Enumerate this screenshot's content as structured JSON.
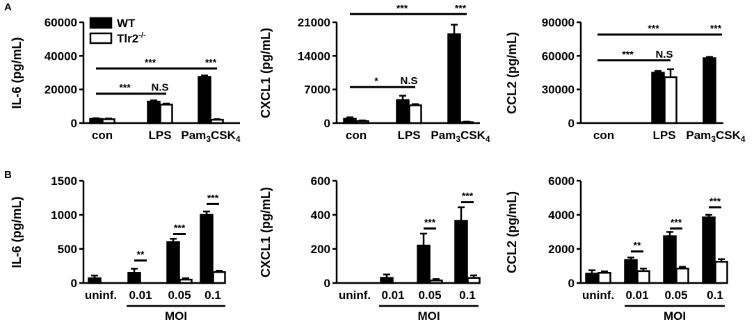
{
  "panel_labels": [
    "A",
    "B"
  ],
  "legend": [
    {
      "label": "WT",
      "fill": "#000000"
    },
    {
      "label": "Tlr2",
      "superscript": "-/-",
      "fill": "#ffffff"
    }
  ],
  "colors": {
    "wt": "#000000",
    "ko": "#ffffff",
    "stroke": "#000000"
  },
  "chart_data": [
    {
      "id": "a-il6",
      "type": "bar",
      "ylabel": "IL-6 (pg/mL)",
      "ylim": [
        0,
        60000
      ],
      "yticks": [
        "0",
        "20000",
        "40000",
        "60000"
      ],
      "categories": [
        "con",
        "LPS",
        "Pam3CSK4"
      ],
      "category_labels": [
        {
          "text": "con"
        },
        {
          "text": "LPS"
        },
        {
          "text": "Pam",
          "sub": "3",
          "rest": "CSK",
          "sub2": "4"
        }
      ],
      "series": [
        {
          "name": "WT",
          "values": [
            2500,
            12800,
            27500
          ],
          "errors": [
            400,
            700,
            800
          ]
        },
        {
          "name": "Tlr2-/-",
          "values": [
            2300,
            11000,
            2000
          ],
          "errors": [
            400,
            600,
            300
          ]
        }
      ],
      "annotations": [
        {
          "label": "***",
          "from": [
            0,
            0
          ],
          "to": [
            1,
            0
          ],
          "y": 17500
        },
        {
          "label": "N.S",
          "from": [
            1,
            0
          ],
          "to": [
            1,
            1
          ],
          "y": 17500
        },
        {
          "label": "***",
          "from": [
            0,
            0
          ],
          "to": [
            2,
            0
          ],
          "y": 32500
        },
        {
          "label": "***",
          "from": [
            2,
            0
          ],
          "to": [
            2,
            1
          ],
          "y": 32500
        }
      ]
    },
    {
      "id": "a-cxcl1",
      "type": "bar",
      "ylabel": "CXCL1 (pg/mL)",
      "ylim": [
        0,
        21000
      ],
      "yticks": [
        "0",
        "7000",
        "14000",
        "21000"
      ],
      "categories": [
        "con",
        "LPS",
        "Pam3CSK4"
      ],
      "category_labels": [
        {
          "text": "con"
        },
        {
          "text": "LPS"
        },
        {
          "text": "Pam",
          "sub": "3",
          "rest": "CSK",
          "sub2": "4"
        }
      ],
      "series": [
        {
          "name": "WT",
          "values": [
            900,
            4800,
            18500
          ],
          "errors": [
            300,
            900,
            2000
          ]
        },
        {
          "name": "Tlr2-/-",
          "values": [
            400,
            3700,
            200
          ],
          "errors": [
            150,
            250,
            100
          ]
        }
      ],
      "annotations": [
        {
          "label": "*",
          "from": [
            0,
            0
          ],
          "to": [
            1,
            0
          ],
          "y": 7500
        },
        {
          "label": "N.S",
          "from": [
            1,
            0
          ],
          "to": [
            1,
            1
          ],
          "y": 7500
        },
        {
          "label": "***",
          "from": [
            0,
            0
          ],
          "to": [
            2,
            0
          ],
          "y": 22700
        },
        {
          "label": "***",
          "from": [
            2,
            0
          ],
          "to": [
            2,
            1
          ],
          "y": 22700
        }
      ]
    },
    {
      "id": "a-ccl2",
      "type": "bar",
      "ylabel": "CCL2 (pg/mL)",
      "ylim": [
        0,
        90000
      ],
      "yticks": [
        "0",
        "30000",
        "60000",
        "90000"
      ],
      "categories": [
        "con",
        "LPS",
        "Pam3CSK4"
      ],
      "category_labels": [
        {
          "text": "con"
        },
        {
          "text": "LPS"
        },
        {
          "text": "Pam",
          "sub": "3",
          "rest": "CSK",
          "sub2": "4"
        }
      ],
      "series": [
        {
          "name": "WT",
          "values": [
            0,
            45000,
            58000
          ],
          "errors": [
            0,
            1500,
            1000
          ]
        },
        {
          "name": "Tlr2-/-",
          "values": [
            0,
            41000,
            0
          ],
          "errors": [
            0,
            7000,
            0
          ]
        }
      ],
      "annotations": [
        {
          "label": "***",
          "from": [
            0,
            0
          ],
          "to": [
            1,
            0
          ],
          "y": 56000
        },
        {
          "label": "N.S",
          "from": [
            1,
            0
          ],
          "to": [
            1,
            1
          ],
          "y": 56000
        },
        {
          "label": "***",
          "from": [
            0,
            0
          ],
          "to": [
            2,
            0
          ],
          "y": 79000
        },
        {
          "label": "***",
          "from": [
            2,
            0
          ],
          "to": [
            2,
            1
          ],
          "y": 79000
        }
      ]
    },
    {
      "id": "b-il6",
      "type": "bar",
      "ylabel": "IL-6 (pg/mL)",
      "ylim": [
        0,
        1500
      ],
      "yticks": [
        "0",
        "500",
        "1000",
        "1500"
      ],
      "categories": [
        "uninf.",
        "0.01",
        "0.05",
        "0.1"
      ],
      "group_label": "MOI",
      "series": [
        {
          "name": "WT",
          "values": [
            70,
            150,
            600,
            1000
          ],
          "errors": [
            40,
            60,
            50,
            50
          ]
        },
        {
          "name": "Tlr2-/-",
          "values": [
            0,
            0,
            50,
            160
          ],
          "errors": [
            0,
            0,
            20,
            20
          ]
        }
      ],
      "annotations": [
        {
          "label": "**",
          "from": [
            1,
            0
          ],
          "to": [
            1,
            1
          ],
          "y": 330
        },
        {
          "label": "***",
          "from": [
            2,
            0
          ],
          "to": [
            2,
            1
          ],
          "y": 720
        },
        {
          "label": "***",
          "from": [
            3,
            0
          ],
          "to": [
            3,
            1
          ],
          "y": 1160
        }
      ]
    },
    {
      "id": "b-cxcl1",
      "type": "bar",
      "ylabel": "CXCL1 (pg/mL)",
      "ylim": [
        0,
        600
      ],
      "yticks": [
        "0",
        "200",
        "400",
        "600"
      ],
      "categories": [
        "uninf.",
        "0.01",
        "0.05",
        "0.1"
      ],
      "group_label": "MOI",
      "series": [
        {
          "name": "WT",
          "values": [
            0,
            30,
            220,
            365
          ],
          "errors": [
            0,
            20,
            70,
            80
          ]
        },
        {
          "name": "Tlr2-/-",
          "values": [
            0,
            0,
            15,
            30
          ],
          "errors": [
            0,
            0,
            8,
            15
          ]
        }
      ],
      "annotations": [
        {
          "label": "***",
          "from": [
            2,
            0
          ],
          "to": [
            2,
            1
          ],
          "y": 320
        },
        {
          "label": "***",
          "from": [
            3,
            0
          ],
          "to": [
            3,
            1
          ],
          "y": 475
        }
      ]
    },
    {
      "id": "b-ccl2",
      "type": "bar",
      "ylabel": "CCL2 (pg/mL)",
      "ylim": [
        0,
        6000
      ],
      "yticks": [
        "0",
        "2000",
        "4000",
        "6000"
      ],
      "categories": [
        "uninf.",
        "0.01",
        "0.05",
        "0.1"
      ],
      "group_label": "MOI",
      "series": [
        {
          "name": "WT",
          "values": [
            550,
            1350,
            2750,
            3850
          ],
          "errors": [
            200,
            150,
            250,
            150
          ]
        },
        {
          "name": "Tlr2-/-",
          "values": [
            600,
            700,
            850,
            1250
          ],
          "errors": [
            80,
            150,
            100,
            150
          ]
        }
      ],
      "annotations": [
        {
          "label": "**",
          "from": [
            1,
            0
          ],
          "to": [
            1,
            1
          ],
          "y": 1850
        },
        {
          "label": "***",
          "from": [
            2,
            0
          ],
          "to": [
            2,
            1
          ],
          "y": 3200
        },
        {
          "label": "***",
          "from": [
            3,
            0
          ],
          "to": [
            3,
            1
          ],
          "y": 4450
        }
      ]
    }
  ]
}
